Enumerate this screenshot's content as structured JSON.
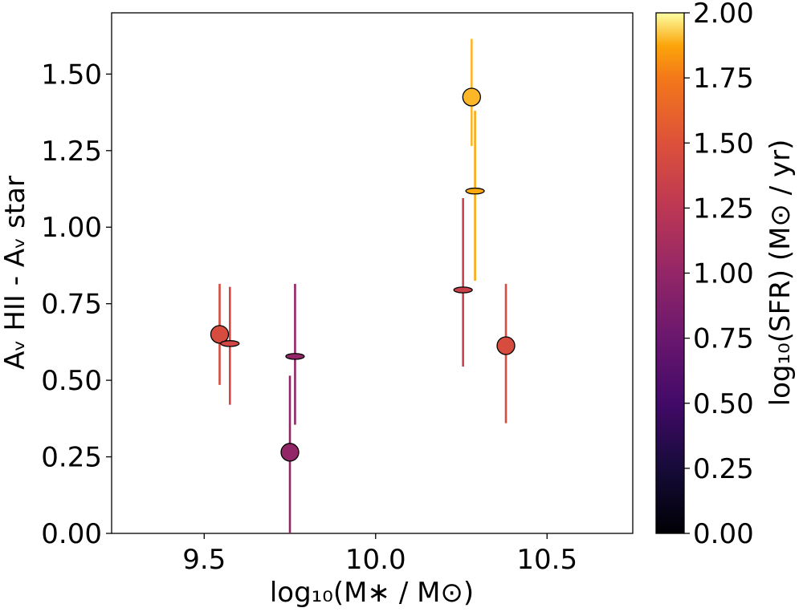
{
  "chart_data": {
    "type": "scatter",
    "xlabel": "log₁₀(M∗ / M⊙)",
    "ylabel": "Aᵥ HII - Aᵥ star",
    "xlim": [
      9.23,
      10.75
    ],
    "ylim": [
      0.0,
      1.7
    ],
    "x_ticks": [
      "9.5",
      "10.0",
      "10.5"
    ],
    "y_ticks": [
      "0.00",
      "0.25",
      "0.50",
      "0.75",
      "1.00",
      "1.25",
      "1.50"
    ],
    "grid": false,
    "colorbar": {
      "label": "log₁₀(SFR) (M⊙ / yr)",
      "range": [
        0.0,
        2.0
      ],
      "colormap": "inferno",
      "ticks": [
        "0.00",
        "0.25",
        "0.50",
        "0.75",
        "1.00",
        "1.25",
        "1.50",
        "1.75",
        "2.00"
      ]
    },
    "points": [
      {
        "x": 9.545,
        "y": 0.65,
        "yerr_low": 0.485,
        "yerr_high": 0.815,
        "c": 1.45,
        "marker": "circle"
      },
      {
        "x": 9.575,
        "y": 0.62,
        "yerr_low": 0.42,
        "yerr_high": 0.805,
        "c": 1.4,
        "marker": "ellipse"
      },
      {
        "x": 9.75,
        "y": 0.265,
        "yerr_low": 0.0,
        "yerr_high": 0.515,
        "c": 1.0,
        "marker": "circle"
      },
      {
        "x": 9.765,
        "y": 0.578,
        "yerr_low": 0.355,
        "yerr_high": 0.815,
        "c": 1.0,
        "marker": "ellipse"
      },
      {
        "x": 10.255,
        "y": 0.795,
        "yerr_low": 0.545,
        "yerr_high": 1.095,
        "c": 1.35,
        "marker": "ellipse"
      },
      {
        "x": 10.28,
        "y": 1.425,
        "yerr_low": 1.265,
        "yerr_high": 1.615,
        "c": 1.9,
        "marker": "circle"
      },
      {
        "x": 10.29,
        "y": 1.118,
        "yerr_low": 0.825,
        "yerr_high": 1.38,
        "c": 1.88,
        "marker": "ellipse"
      },
      {
        "x": 10.38,
        "y": 0.613,
        "yerr_low": 0.36,
        "yerr_high": 0.815,
        "c": 1.45,
        "marker": "circle"
      }
    ]
  }
}
